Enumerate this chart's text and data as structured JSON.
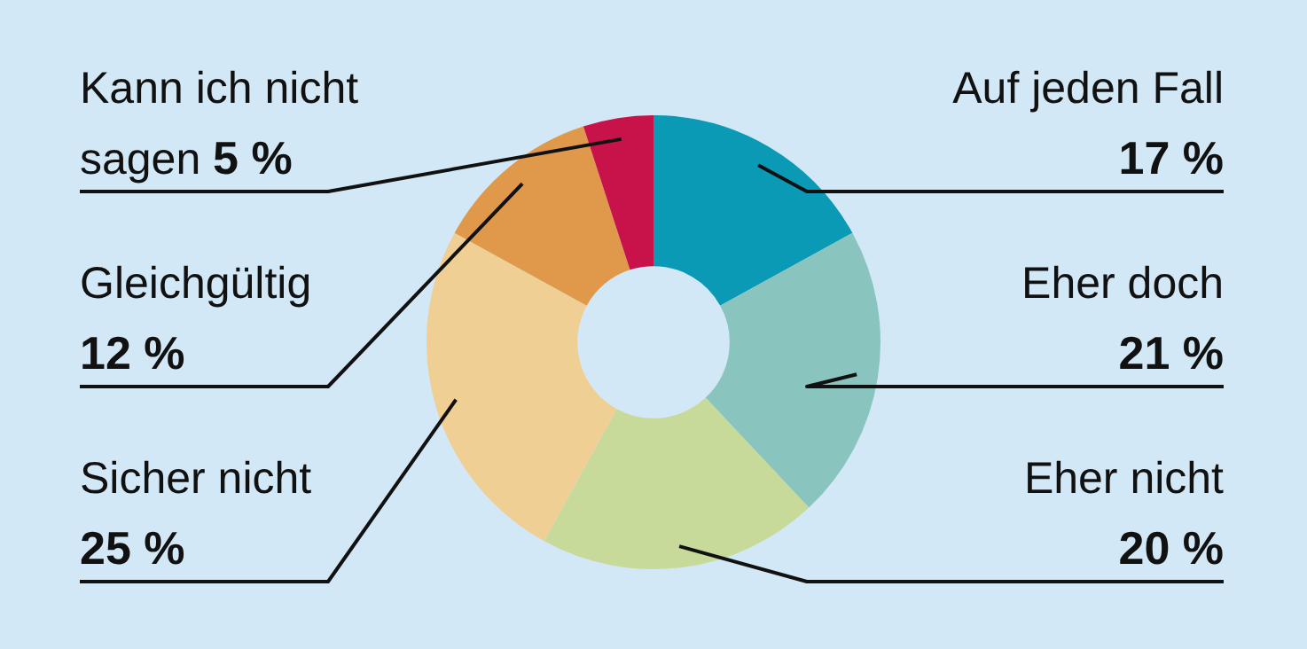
{
  "chart_data": {
    "type": "donut",
    "categories": [
      "Auf jeden Fall",
      "Eher doch",
      "Eher nicht",
      "Sicher nicht",
      "Gleichgültig",
      "Kann ich nicht sagen"
    ],
    "values": [
      17,
      21,
      20,
      25,
      12,
      5
    ],
    "colors": [
      "#0a9ab5",
      "#8ac4bf",
      "#c8da9a",
      "#f0cf95",
      "#e0994a",
      "#c8124a"
    ],
    "value_labels": [
      "17 %",
      "21 %",
      "20 %",
      "25 %",
      "12 %",
      "5 %"
    ],
    "legend": false
  }
}
